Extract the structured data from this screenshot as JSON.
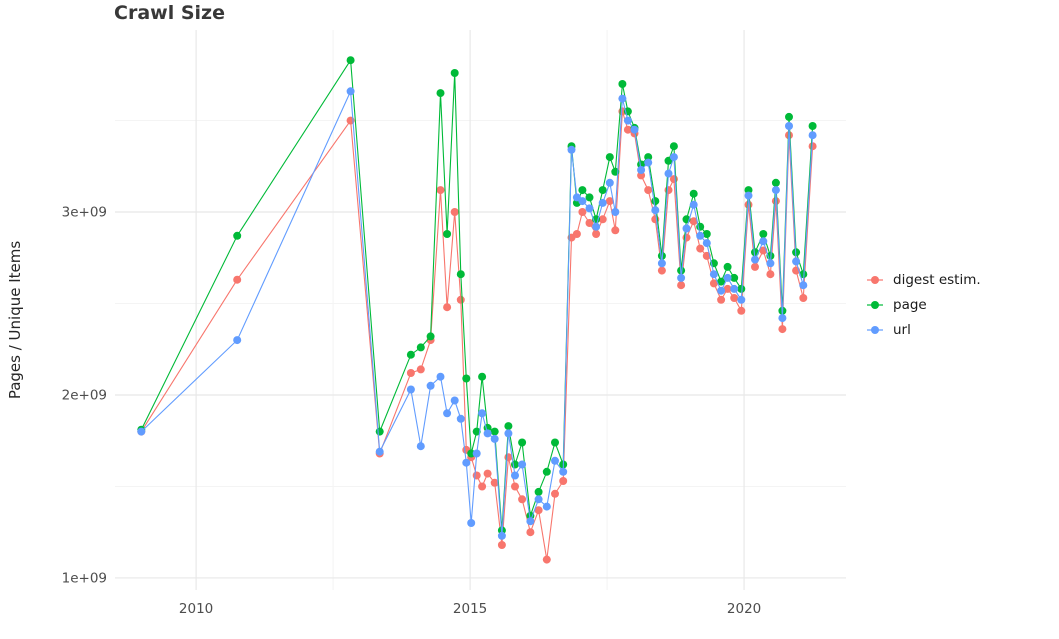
{
  "page": {
    "title": "Crawl Size",
    "background": "#ffffff"
  },
  "chart_data": {
    "type": "line",
    "title": "Crawl Size",
    "xlabel": "",
    "ylabel": "Pages / Unique Items",
    "y_unit": "values in billions (1e9)",
    "grid": true,
    "legend_position": "right",
    "xlim": [
      2008.52,
      2021.86
    ],
    "ylim": [
      0.934,
      3.995
    ],
    "x_ticks": {
      "values": [
        2010,
        2015,
        2020
      ],
      "labels": [
        "2010",
        "2015",
        "2020"
      ]
    },
    "y_ticks": {
      "values": [
        1,
        2,
        3
      ],
      "labels": [
        "1e+09",
        "2e+09",
        "3e+09"
      ]
    },
    "x_minor": [
      2012.5,
      2017.5
    ],
    "y_minor": [
      1.5,
      2.5,
      3.5
    ],
    "x": [
      2009.0,
      2010.75,
      2012.82,
      2013.35,
      2013.92,
      2014.1,
      2014.28,
      2014.46,
      2014.58,
      2014.72,
      2014.83,
      2014.93,
      2015.02,
      2015.12,
      2015.22,
      2015.32,
      2015.45,
      2015.58,
      2015.7,
      2015.82,
      2015.95,
      2016.1,
      2016.25,
      2016.4,
      2016.55,
      2016.7,
      2016.85,
      2016.95,
      2017.05,
      2017.18,
      2017.3,
      2017.42,
      2017.55,
      2017.65,
      2017.78,
      2017.88,
      2018.0,
      2018.12,
      2018.25,
      2018.38,
      2018.5,
      2018.62,
      2018.72,
      2018.85,
      2018.95,
      2019.08,
      2019.2,
      2019.32,
      2019.45,
      2019.58,
      2019.7,
      2019.82,
      2019.95,
      2020.08,
      2020.2,
      2020.35,
      2020.48,
      2020.58,
      2020.7,
      2020.82,
      2020.95,
      2021.08,
      2021.25
    ],
    "series": [
      {
        "name": "digest estim.",
        "color": "#F8766D",
        "values": [
          1.8,
          2.63,
          3.5,
          1.68,
          2.12,
          2.14,
          2.3,
          3.12,
          2.48,
          3.0,
          2.52,
          1.7,
          1.66,
          1.56,
          1.5,
          1.57,
          1.52,
          1.18,
          1.66,
          1.5,
          1.43,
          1.25,
          1.37,
          1.1,
          1.46,
          1.53,
          2.86,
          2.88,
          3.0,
          2.94,
          2.88,
          2.96,
          3.06,
          2.9,
          3.55,
          3.45,
          3.43,
          3.2,
          3.12,
          2.96,
          2.68,
          3.12,
          3.18,
          2.6,
          2.86,
          2.95,
          2.8,
          2.76,
          2.61,
          2.52,
          2.58,
          2.53,
          2.46,
          3.04,
          2.7,
          2.79,
          2.66,
          3.06,
          2.36,
          3.42,
          2.68,
          2.53,
          3.36
        ]
      },
      {
        "name": "page",
        "color": "#00BA38",
        "values": [
          1.81,
          2.87,
          3.83,
          1.8,
          2.22,
          2.26,
          2.32,
          3.65,
          2.88,
          3.76,
          2.66,
          2.09,
          1.68,
          1.8,
          2.1,
          1.82,
          1.8,
          1.26,
          1.83,
          1.62,
          1.74,
          1.34,
          1.47,
          1.58,
          1.74,
          1.62,
          3.36,
          3.05,
          3.12,
          3.08,
          2.96,
          3.12,
          3.3,
          3.22,
          3.7,
          3.55,
          3.46,
          3.26,
          3.3,
          3.06,
          2.76,
          3.28,
          3.36,
          2.68,
          2.96,
          3.1,
          2.92,
          2.88,
          2.72,
          2.62,
          2.7,
          2.64,
          2.58,
          3.12,
          2.78,
          2.88,
          2.76,
          3.16,
          2.46,
          3.52,
          2.78,
          2.66,
          3.47
        ]
      },
      {
        "name": "url",
        "color": "#619CFF",
        "values": [
          1.8,
          2.3,
          3.66,
          1.69,
          2.03,
          1.72,
          2.05,
          2.1,
          1.9,
          1.97,
          1.87,
          1.63,
          1.3,
          1.68,
          1.9,
          1.79,
          1.76,
          1.23,
          1.79,
          1.56,
          1.62,
          1.31,
          1.43,
          1.39,
          1.64,
          1.58,
          3.34,
          3.08,
          3.06,
          3.02,
          2.92,
          3.05,
          3.16,
          3.0,
          3.62,
          3.5,
          3.45,
          3.23,
          3.27,
          3.01,
          2.72,
          3.21,
          3.3,
          2.64,
          2.91,
          3.04,
          2.87,
          2.83,
          2.66,
          2.57,
          2.64,
          2.58,
          2.52,
          3.09,
          2.74,
          2.84,
          2.72,
          3.12,
          2.42,
          3.47,
          2.73,
          2.6,
          3.42
        ]
      }
    ],
    "style": {
      "grid_major_color": "#e8e8e8",
      "grid_minor_color": "#f4f4f4",
      "tick_label_color": "#4d4d4d",
      "point_radius": 4
    }
  }
}
